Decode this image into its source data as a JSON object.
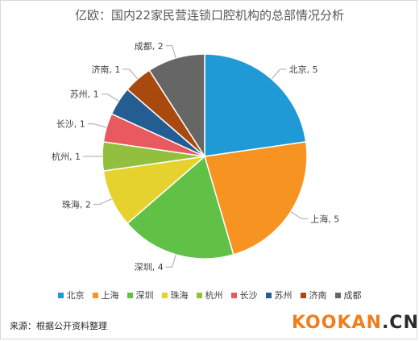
{
  "chart_data": {
    "type": "pie",
    "title": "亿欧：国内22家民营连锁口腔机构的总部情况分析",
    "categories": [
      "北京",
      "上海",
      "深圳",
      "珠海",
      "杭州",
      "长沙",
      "苏州",
      "济南",
      "成都"
    ],
    "values": [
      5,
      5,
      4,
      2,
      1,
      1,
      1,
      1,
      2
    ],
    "colors": [
      "#1f9ad6",
      "#f79421",
      "#60c146",
      "#e6d22f",
      "#92c03e",
      "#e85a5f",
      "#245d92",
      "#a84a10",
      "#666666"
    ],
    "data_label_separator": ", ",
    "legend_position": "bottom"
  },
  "footer": {
    "source": "来源：根据公开资料整理",
    "watermark_main": "KOOKAN",
    "watermark_suffix": ".CN"
  }
}
